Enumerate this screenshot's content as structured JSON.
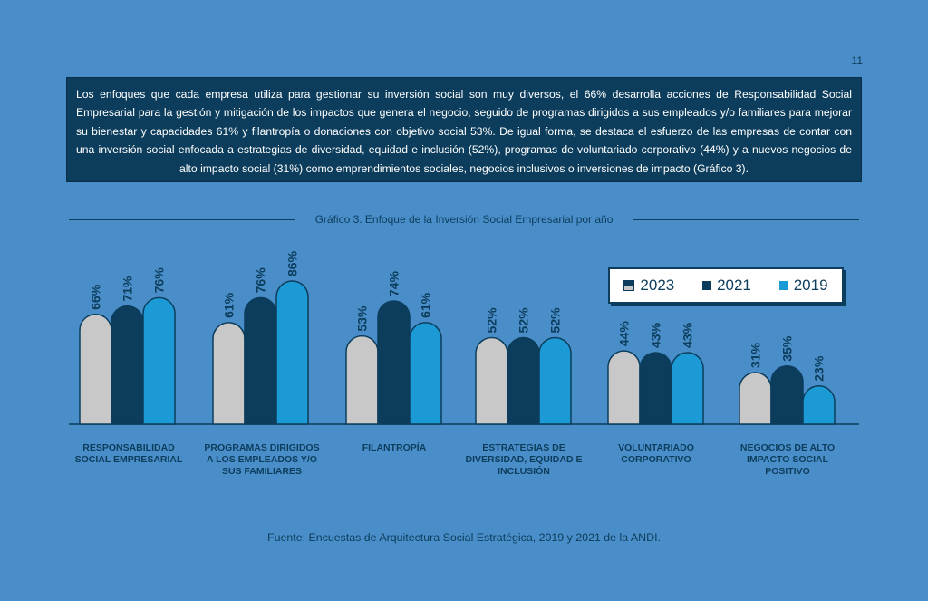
{
  "page_number": "11",
  "intro_text": "Los enfoques que cada empresa utiliza para gestionar su inversión social son muy diversos, el 66% desarrolla acciones de Responsabilidad Social Empresarial para la gestión y mitigación de los impactos que genera el negocio, seguido de programas dirigidos a sus empleados y/o familiares para mejorar su bienestar y capacidades 61% y filantropía o donaciones con objetivo social 53%. De igual forma, se destaca el esfuerzo de las empresas de contar con una inversión social enfocada a estrategias de diversidad, equidad e inclusión (52%), programas de voluntariado corporativo (44%) y a nuevos negocios de alto impacto social (31%) como emprendimientos sociales, negocios inclusivos o inversiones de impacto (Gráfico 3).",
  "source": "Fuente: Encuestas de Arquitectura Social Estratégica, 2019 y 2021 de la ANDI.",
  "colors": {
    "s2023": "#c8c8c8",
    "s2021": "#0c3d5c",
    "s2019": "#1c9ad6",
    "background": "#4a8ec9",
    "text": "#0c3d5c"
  },
  "chart_data": {
    "type": "bar",
    "title": "Gráfico 3. Enfoque de la Inversión Social Empresarial por año",
    "categories": [
      "RESPONSABILIDAD SOCIAL EMPRESARIAL",
      "PROGRAMAS DIRIGIDOS A LOS EMPLEADOS Y/O SUS FAMILIARES",
      "FILANTROPÍA",
      "ESTRATEGIAS DE DIVERSIDAD, EQUIDAD E INCLUSIÓN",
      "VOLUNTARIADO CORPORATIVO",
      "NEGOCIOS DE ALTO IMPACTO SOCIAL POSITIVO"
    ],
    "series": [
      {
        "name": "2023",
        "values": [
          66,
          61,
          53,
          52,
          44,
          31
        ],
        "labels": [
          "66%",
          "61%",
          "53%",
          "52%",
          "44%",
          "31%"
        ]
      },
      {
        "name": "2021",
        "values": [
          71,
          76,
          74,
          52,
          43,
          35
        ],
        "labels": [
          "71%",
          "76%",
          "74%",
          "52%",
          "43%",
          "35%"
        ]
      },
      {
        "name": "2019",
        "values": [
          76,
          86,
          61,
          52,
          43,
          23
        ],
        "labels": [
          "76%",
          "86%",
          "61%",
          "52%",
          "43%",
          "23%"
        ]
      }
    ],
    "ylim": [
      0,
      100
    ],
    "legend_position": "right",
    "grid": false
  }
}
